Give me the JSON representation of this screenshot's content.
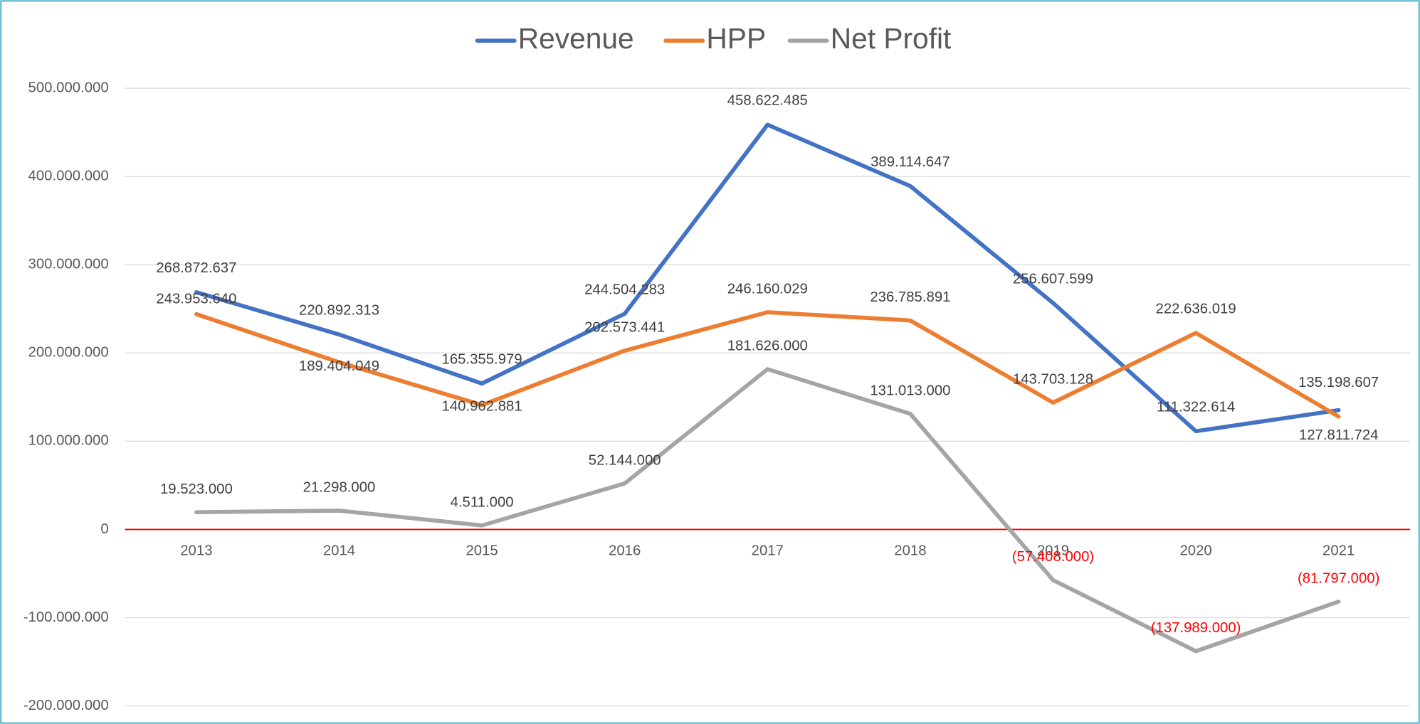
{
  "chart_data": {
    "type": "line",
    "categories": [
      "2013",
      "2014",
      "2015",
      "2016",
      "2017",
      "2018",
      "2019",
      "2020",
      "2021"
    ],
    "series": [
      {
        "name": "Revenue",
        "color": "#4472c4",
        "values": [
          268872637,
          220892313,
          165355979,
          244504283,
          458622485,
          389114647,
          256607599,
          111322614,
          135198607
        ],
        "value_labels": [
          "268.872.637",
          "220.892.313",
          "165.355.979",
          "244.504.283",
          "458.622.485",
          "389.114.647",
          "256.607.599",
          "111.322.614",
          "135.198.607"
        ]
      },
      {
        "name": "HPP",
        "color": "#ed7d31",
        "values": [
          243953640,
          189404049,
          140962881,
          202573441,
          246160029,
          236785891,
          143703128,
          222636019,
          127811724
        ],
        "value_labels": [
          "243.953.640",
          "189.404.049",
          "140.962.881",
          "202.573.441",
          "246.160.029",
          "236.785.891",
          "143.703.128",
          "222.636.019",
          "127.811.724"
        ]
      },
      {
        "name": "Net Profit",
        "color": "#a5a5a5",
        "values": [
          19523000,
          21298000,
          4511000,
          52144000,
          181626000,
          131013000,
          -57408000,
          -137989000,
          -81797000
        ],
        "value_labels": [
          "19.523.000",
          "21.298.000",
          "4.511.000",
          "52.144.000",
          "181.626.000",
          "131.013.000",
          "(57.408.000)",
          "(137.989.000)",
          "(81.797.000)"
        ]
      }
    ],
    "ylim": [
      -200000000,
      500000000
    ],
    "yticks": [
      {
        "value": -200000000,
        "label": "-200.000.000"
      },
      {
        "value": -100000000,
        "label": "-100.000.000"
      },
      0,
      {
        "value": 100000000,
        "label": "100.000.000"
      },
      {
        "value": 200000000,
        "label": "200.000.000"
      },
      {
        "value": 300000000,
        "label": "300.000.000"
      },
      {
        "value": 400000000,
        "label": "400.000.000"
      },
      {
        "value": 500000000,
        "label": "500.000.000"
      }
    ],
    "grid": true,
    "legend": "top",
    "zero_line_color": "#ff0000",
    "negative_label_color": "#ff0000"
  }
}
